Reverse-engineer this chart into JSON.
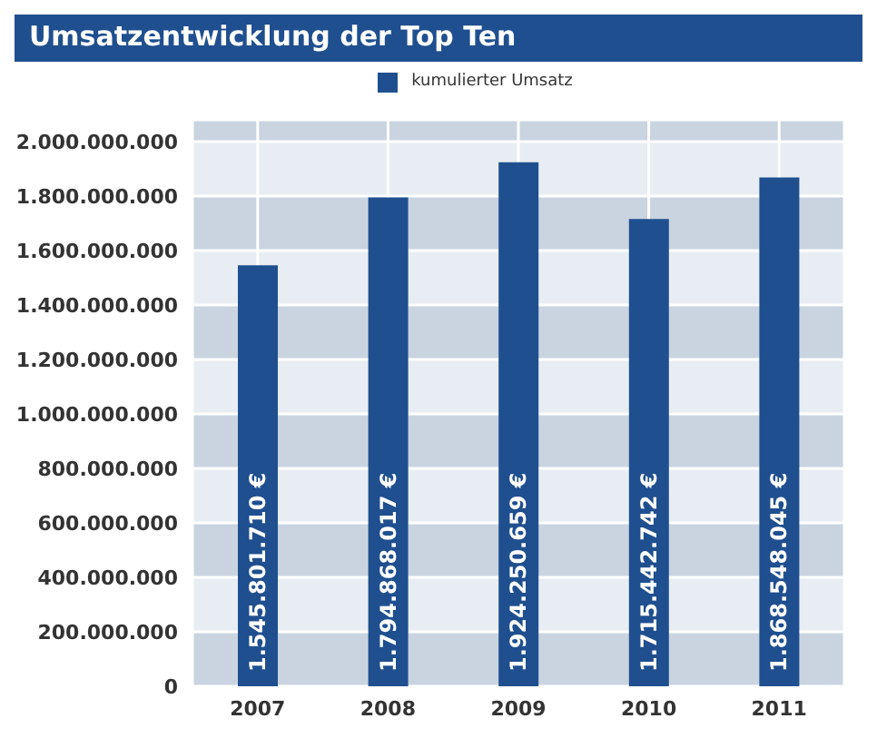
{
  "chart_data": {
    "type": "bar",
    "title": "Umsatzentwicklung der Top Ten",
    "categories": [
      "2007",
      "2008",
      "2009",
      "2010",
      "2011"
    ],
    "series": [
      {
        "name": "kumulierter Umsatz",
        "color": "#1f4f8f",
        "values": [
          1545801710,
          1794868017,
          1924250659,
          1715442742,
          1868548045
        ],
        "value_labels": [
          "1.545.801.710 €",
          "1.794.868.017 €",
          "1.924.250.659 €",
          "1.715.442.742 €",
          "1.868.548.045 €"
        ]
      }
    ],
    "ylim": [
      0,
      2080000000
    ],
    "yticks": [
      {
        "value": 0,
        "label": "0"
      },
      {
        "value": 200000000,
        "label": "200.000.000"
      },
      {
        "value": 400000000,
        "label": "400.000.000"
      },
      {
        "value": 600000000,
        "label": "600.000.000"
      },
      {
        "value": 800000000,
        "label": "800.000.000"
      },
      {
        "value": 1000000000,
        "label": "1.000.000.000"
      },
      {
        "value": 1200000000,
        "label": "1.200.000.000"
      },
      {
        "value": 1400000000,
        "label": "1.400.000.000"
      },
      {
        "value": 1600000000,
        "label": "1.600.000.000"
      },
      {
        "value": 1800000000,
        "label": "1.800.000.000"
      },
      {
        "value": 2000000000,
        "label": "2.000.000.000"
      }
    ],
    "grid": true,
    "legend": "top"
  }
}
